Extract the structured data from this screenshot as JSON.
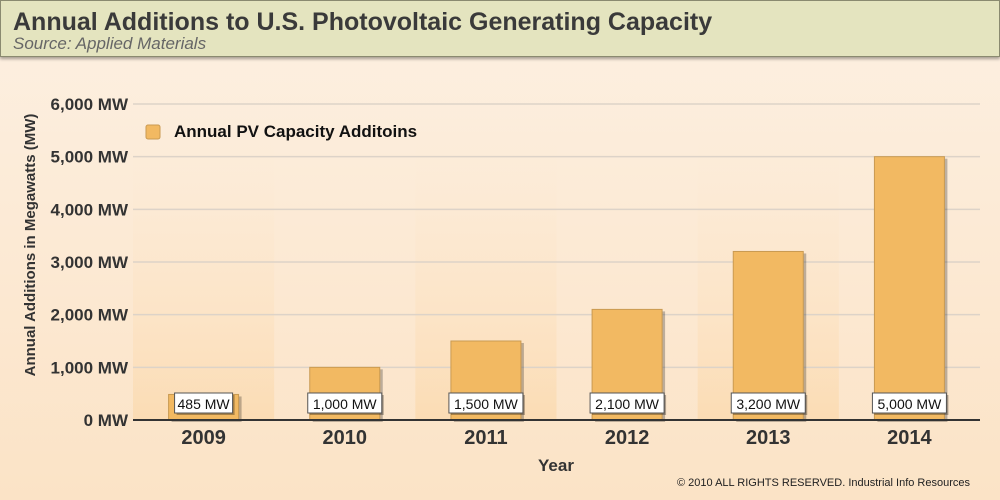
{
  "chart_data": {
    "type": "bar",
    "title": "Annual Additions to U.S. Photovoltaic Generating Capacity",
    "subtitle": "Source: Applied Materials",
    "xlabel": "Year",
    "ylabel": "Annual Additions in Megawatts (MW)",
    "ylim": [
      0,
      6000
    ],
    "yticks": [
      0,
      1000,
      2000,
      3000,
      4000,
      5000,
      6000
    ],
    "ytick_labels": [
      "0 MW",
      "1,000 MW",
      "2,000 MW",
      "3,000 MW",
      "4,000 MW",
      "5,000 MW",
      "6,000 MW"
    ],
    "categories": [
      "2009",
      "2010",
      "2011",
      "2012",
      "2013",
      "2014"
    ],
    "values": [
      485,
      1000,
      1500,
      2100,
      3200,
      5000
    ],
    "data_labels": [
      "485 MW",
      "1,000 MW",
      "1,500 MW",
      "2,100 MW",
      "3,200 MW",
      "5,000 MW"
    ],
    "legend": {
      "label": "Annual PV Capacity Additoins",
      "placement": "top-left"
    },
    "grid": true,
    "colors": {
      "bar": "#f2b962",
      "bar_edge": "#c99a52"
    }
  },
  "footer": "© 2010 ALL RIGHTS RESERVED. Industrial Info Resources"
}
